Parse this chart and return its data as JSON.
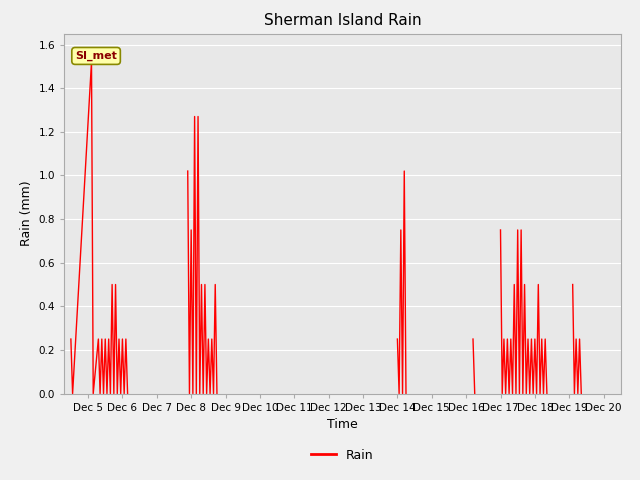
{
  "title": "Sherman Island Rain",
  "ylabel": "Rain (mm)",
  "xlabel": "Time",
  "ylim": [
    0.0,
    1.65
  ],
  "yticks": [
    0.0,
    0.2,
    0.4,
    0.6,
    0.8,
    1.0,
    1.2,
    1.4,
    1.6
  ],
  "line_color": "#ff0000",
  "line_width": 1.0,
  "plot_bg_color": "#e8e8e8",
  "fig_bg_color": "#f0f0f0",
  "legend_label": "Rain",
  "annotation_text": "SI_met",
  "data": [
    [
      4.5,
      0.25
    ],
    [
      4.55,
      0.0
    ],
    [
      5.1,
      1.52
    ],
    [
      5.15,
      0.0
    ],
    [
      5.3,
      0.25
    ],
    [
      5.35,
      0.0
    ],
    [
      5.4,
      0.25
    ],
    [
      5.45,
      0.0
    ],
    [
      5.5,
      0.25
    ],
    [
      5.55,
      0.0
    ],
    [
      5.6,
      0.25
    ],
    [
      5.65,
      0.0
    ],
    [
      5.7,
      0.5
    ],
    [
      5.75,
      0.0
    ],
    [
      5.8,
      0.5
    ],
    [
      5.85,
      0.0
    ],
    [
      5.9,
      0.25
    ],
    [
      5.95,
      0.0
    ],
    [
      6.0,
      0.25
    ],
    [
      6.05,
      0.0
    ],
    [
      6.1,
      0.25
    ],
    [
      6.15,
      0.0
    ],
    null,
    [
      7.9,
      1.02
    ],
    [
      7.95,
      0.0
    ],
    [
      8.0,
      0.75
    ],
    [
      8.05,
      0.0
    ],
    [
      8.1,
      1.27
    ],
    [
      8.15,
      0.0
    ],
    [
      8.2,
      1.27
    ],
    [
      8.25,
      0.0
    ],
    [
      8.3,
      0.5
    ],
    [
      8.35,
      0.0
    ],
    [
      8.4,
      0.5
    ],
    [
      8.45,
      0.0
    ],
    [
      8.5,
      0.25
    ],
    [
      8.55,
      0.0
    ],
    [
      8.6,
      0.25
    ],
    [
      8.65,
      0.0
    ],
    [
      8.7,
      0.5
    ],
    [
      8.75,
      0.0
    ],
    null,
    [
      14.0,
      0.25
    ],
    [
      14.05,
      0.0
    ],
    [
      14.1,
      0.75
    ],
    [
      14.15,
      0.0
    ],
    [
      14.2,
      1.02
    ],
    [
      14.25,
      0.0
    ],
    null,
    [
      16.2,
      0.25
    ],
    [
      16.25,
      0.0
    ],
    null,
    [
      17.0,
      0.75
    ],
    [
      17.05,
      0.0
    ],
    [
      17.1,
      0.25
    ],
    [
      17.15,
      0.0
    ],
    [
      17.2,
      0.25
    ],
    [
      17.25,
      0.0
    ],
    [
      17.3,
      0.25
    ],
    [
      17.35,
      0.0
    ],
    [
      17.4,
      0.5
    ],
    [
      17.45,
      0.0
    ],
    [
      17.5,
      0.75
    ],
    [
      17.55,
      0.0
    ],
    [
      17.6,
      0.75
    ],
    [
      17.65,
      0.0
    ],
    [
      17.7,
      0.5
    ],
    [
      17.75,
      0.0
    ],
    [
      17.8,
      0.25
    ],
    [
      17.85,
      0.0
    ],
    [
      17.9,
      0.25
    ],
    [
      17.95,
      0.0
    ],
    [
      18.0,
      0.25
    ],
    [
      18.05,
      0.0
    ],
    [
      18.1,
      0.5
    ],
    [
      18.15,
      0.0
    ],
    [
      18.2,
      0.25
    ],
    [
      18.25,
      0.0
    ],
    [
      18.3,
      0.25
    ],
    [
      18.35,
      0.0
    ],
    null,
    [
      19.1,
      0.5
    ],
    [
      19.15,
      0.0
    ],
    [
      19.2,
      0.25
    ],
    [
      19.25,
      0.0
    ],
    [
      19.3,
      0.25
    ],
    [
      19.35,
      0.0
    ]
  ],
  "xtick_positions": [
    5,
    6,
    7,
    8,
    9,
    10,
    11,
    12,
    13,
    14,
    15,
    16,
    17,
    18,
    19,
    20
  ],
  "xtick_labels": [
    "Dec 5",
    "Dec 6",
    "Dec 7",
    "Dec 8",
    "Dec 9",
    "Dec 10",
    "Dec 11",
    "Dec 12",
    "Dec 13",
    "Dec 14",
    "Dec 15",
    "Dec 16",
    "Dec 17",
    "Dec 18",
    "Dec 19",
    "Dec 20"
  ]
}
